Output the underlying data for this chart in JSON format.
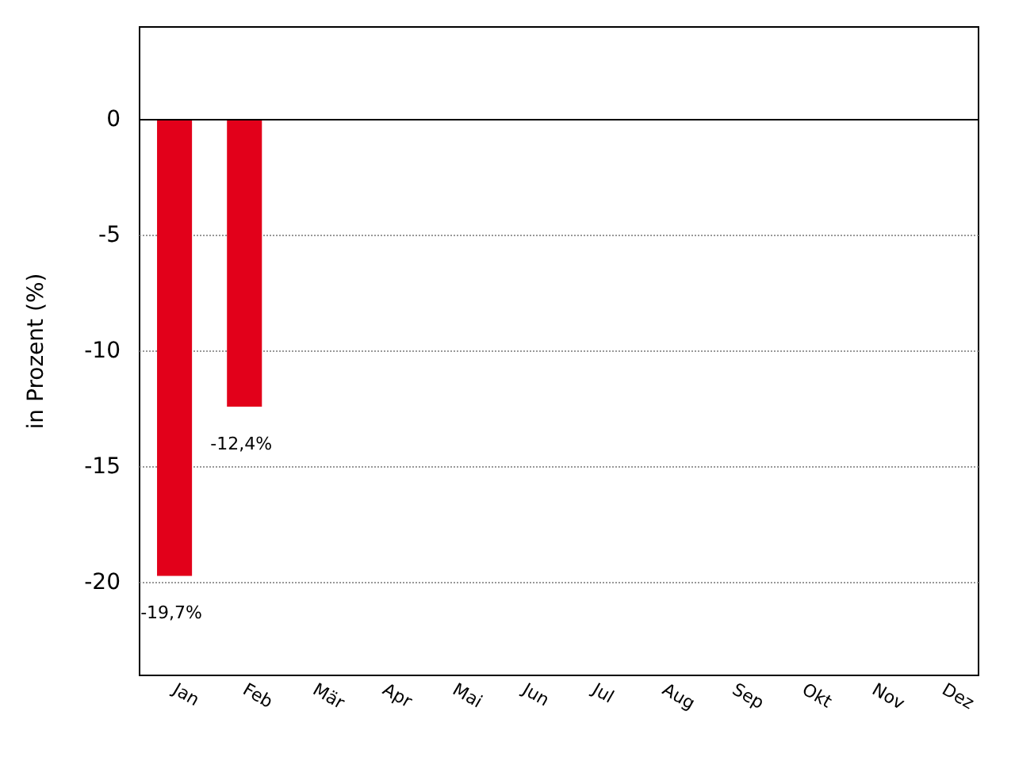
{
  "chart_data": {
    "type": "bar",
    "ylabel": "in Prozent (%)",
    "categories": [
      "Jan",
      "Feb",
      "Mär",
      "Apr",
      "Mai",
      "Jun",
      "Jul",
      "Aug",
      "Sep",
      "Okt",
      "Nov",
      "Dez"
    ],
    "values": [
      -19.7,
      -12.4,
      null,
      null,
      null,
      null,
      null,
      null,
      null,
      null,
      null,
      null
    ],
    "value_labels": [
      "-19,7%",
      "-12,4%",
      null,
      null,
      null,
      null,
      null,
      null,
      null,
      null,
      null,
      null
    ],
    "color": "#e2001a",
    "ylim": [
      -24,
      4
    ],
    "yticks": [
      0,
      -5,
      -10,
      -15,
      -20
    ],
    "grid": "y",
    "ref_lines": [
      {
        "axis": "y",
        "value": 0,
        "color": "#000000"
      }
    ]
  }
}
